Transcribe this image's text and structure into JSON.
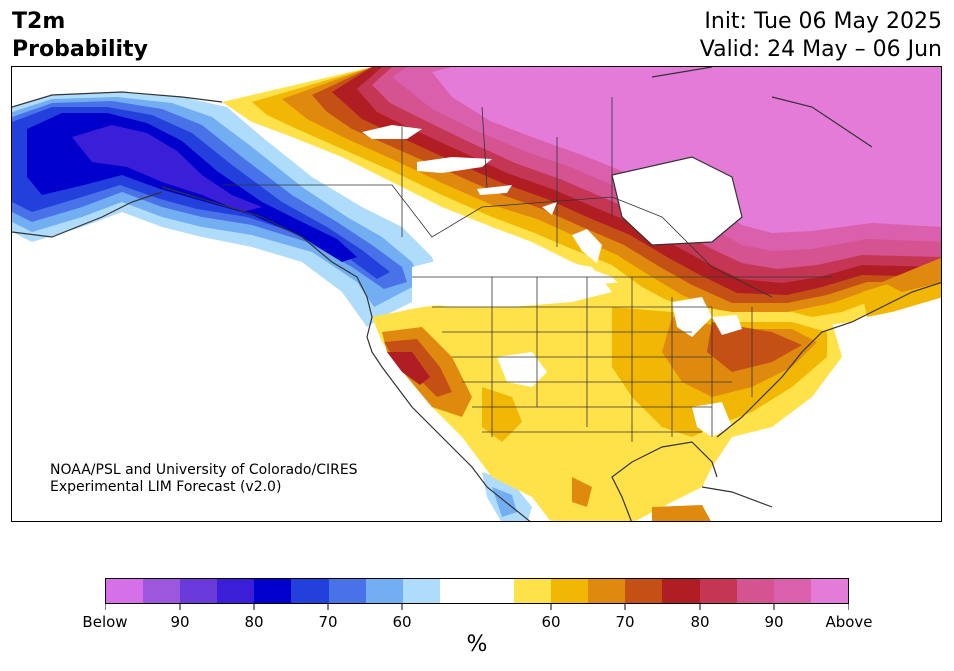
{
  "header": {
    "title_line1": "T2m",
    "title_line2": "Probability",
    "init_line": "Init: Tue 06 May 2025",
    "valid_line": "Valid: 24 May – 06 Jun"
  },
  "map": {
    "credit_line1": "NOAA/PSL and University of Colorado/CIRES",
    "credit_line2": "Experimental LIM Forecast (v2.0)",
    "land_color": "#ffffff",
    "border_color": "#333333"
  },
  "colorbar": {
    "colors": [
      "#d670e8",
      "#9d57df",
      "#6a3adb",
      "#3a1ed8",
      "#0000cc",
      "#2340dd",
      "#4a72e8",
      "#74aef2",
      "#afdcfa",
      "#ffffff",
      "#ffffff",
      "#ffe24a",
      "#f2b705",
      "#df8a0f",
      "#c55016",
      "#b01e24",
      "#c53655",
      "#d45390",
      "#da5fad",
      "#e47bd9"
    ],
    "tick_labels": [
      "Below",
      "90",
      "80",
      "70",
      "60",
      "60",
      "70",
      "80",
      "90",
      "Above"
    ],
    "unit": "%"
  }
}
